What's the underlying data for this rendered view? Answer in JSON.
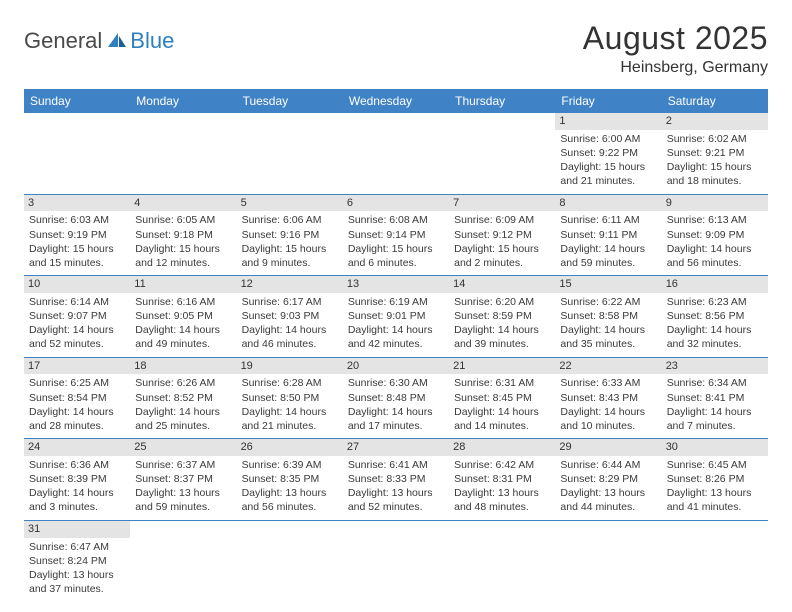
{
  "logo": {
    "part1": "General",
    "part2": "Blue"
  },
  "header": {
    "title": "August 2025",
    "location": "Heinsberg, Germany"
  },
  "colors": {
    "header_bg": "#3f83c6",
    "header_text": "#ffffff",
    "daynum_bg": "#e4e4e4",
    "rule": "#3f83c6",
    "logo_blue": "#2f7fbf"
  },
  "day_labels": [
    "Sunday",
    "Monday",
    "Tuesday",
    "Wednesday",
    "Thursday",
    "Friday",
    "Saturday"
  ],
  "weeks": [
    [
      null,
      null,
      null,
      null,
      null,
      {
        "n": "1",
        "sr": "Sunrise: 6:00 AM",
        "ss": "Sunset: 9:22 PM",
        "dl1": "Daylight: 15 hours",
        "dl2": "and 21 minutes."
      },
      {
        "n": "2",
        "sr": "Sunrise: 6:02 AM",
        "ss": "Sunset: 9:21 PM",
        "dl1": "Daylight: 15 hours",
        "dl2": "and 18 minutes."
      }
    ],
    [
      {
        "n": "3",
        "sr": "Sunrise: 6:03 AM",
        "ss": "Sunset: 9:19 PM",
        "dl1": "Daylight: 15 hours",
        "dl2": "and 15 minutes."
      },
      {
        "n": "4",
        "sr": "Sunrise: 6:05 AM",
        "ss": "Sunset: 9:18 PM",
        "dl1": "Daylight: 15 hours",
        "dl2": "and 12 minutes."
      },
      {
        "n": "5",
        "sr": "Sunrise: 6:06 AM",
        "ss": "Sunset: 9:16 PM",
        "dl1": "Daylight: 15 hours",
        "dl2": "and 9 minutes."
      },
      {
        "n": "6",
        "sr": "Sunrise: 6:08 AM",
        "ss": "Sunset: 9:14 PM",
        "dl1": "Daylight: 15 hours",
        "dl2": "and 6 minutes."
      },
      {
        "n": "7",
        "sr": "Sunrise: 6:09 AM",
        "ss": "Sunset: 9:12 PM",
        "dl1": "Daylight: 15 hours",
        "dl2": "and 2 minutes."
      },
      {
        "n": "8",
        "sr": "Sunrise: 6:11 AM",
        "ss": "Sunset: 9:11 PM",
        "dl1": "Daylight: 14 hours",
        "dl2": "and 59 minutes."
      },
      {
        "n": "9",
        "sr": "Sunrise: 6:13 AM",
        "ss": "Sunset: 9:09 PM",
        "dl1": "Daylight: 14 hours",
        "dl2": "and 56 minutes."
      }
    ],
    [
      {
        "n": "10",
        "sr": "Sunrise: 6:14 AM",
        "ss": "Sunset: 9:07 PM",
        "dl1": "Daylight: 14 hours",
        "dl2": "and 52 minutes."
      },
      {
        "n": "11",
        "sr": "Sunrise: 6:16 AM",
        "ss": "Sunset: 9:05 PM",
        "dl1": "Daylight: 14 hours",
        "dl2": "and 49 minutes."
      },
      {
        "n": "12",
        "sr": "Sunrise: 6:17 AM",
        "ss": "Sunset: 9:03 PM",
        "dl1": "Daylight: 14 hours",
        "dl2": "and 46 minutes."
      },
      {
        "n": "13",
        "sr": "Sunrise: 6:19 AM",
        "ss": "Sunset: 9:01 PM",
        "dl1": "Daylight: 14 hours",
        "dl2": "and 42 minutes."
      },
      {
        "n": "14",
        "sr": "Sunrise: 6:20 AM",
        "ss": "Sunset: 8:59 PM",
        "dl1": "Daylight: 14 hours",
        "dl2": "and 39 minutes."
      },
      {
        "n": "15",
        "sr": "Sunrise: 6:22 AM",
        "ss": "Sunset: 8:58 PM",
        "dl1": "Daylight: 14 hours",
        "dl2": "and 35 minutes."
      },
      {
        "n": "16",
        "sr": "Sunrise: 6:23 AM",
        "ss": "Sunset: 8:56 PM",
        "dl1": "Daylight: 14 hours",
        "dl2": "and 32 minutes."
      }
    ],
    [
      {
        "n": "17",
        "sr": "Sunrise: 6:25 AM",
        "ss": "Sunset: 8:54 PM",
        "dl1": "Daylight: 14 hours",
        "dl2": "and 28 minutes."
      },
      {
        "n": "18",
        "sr": "Sunrise: 6:26 AM",
        "ss": "Sunset: 8:52 PM",
        "dl1": "Daylight: 14 hours",
        "dl2": "and 25 minutes."
      },
      {
        "n": "19",
        "sr": "Sunrise: 6:28 AM",
        "ss": "Sunset: 8:50 PM",
        "dl1": "Daylight: 14 hours",
        "dl2": "and 21 minutes."
      },
      {
        "n": "20",
        "sr": "Sunrise: 6:30 AM",
        "ss": "Sunset: 8:48 PM",
        "dl1": "Daylight: 14 hours",
        "dl2": "and 17 minutes."
      },
      {
        "n": "21",
        "sr": "Sunrise: 6:31 AM",
        "ss": "Sunset: 8:45 PM",
        "dl1": "Daylight: 14 hours",
        "dl2": "and 14 minutes."
      },
      {
        "n": "22",
        "sr": "Sunrise: 6:33 AM",
        "ss": "Sunset: 8:43 PM",
        "dl1": "Daylight: 14 hours",
        "dl2": "and 10 minutes."
      },
      {
        "n": "23",
        "sr": "Sunrise: 6:34 AM",
        "ss": "Sunset: 8:41 PM",
        "dl1": "Daylight: 14 hours",
        "dl2": "and 7 minutes."
      }
    ],
    [
      {
        "n": "24",
        "sr": "Sunrise: 6:36 AM",
        "ss": "Sunset: 8:39 PM",
        "dl1": "Daylight: 14 hours",
        "dl2": "and 3 minutes."
      },
      {
        "n": "25",
        "sr": "Sunrise: 6:37 AM",
        "ss": "Sunset: 8:37 PM",
        "dl1": "Daylight: 13 hours",
        "dl2": "and 59 minutes."
      },
      {
        "n": "26",
        "sr": "Sunrise: 6:39 AM",
        "ss": "Sunset: 8:35 PM",
        "dl1": "Daylight: 13 hours",
        "dl2": "and 56 minutes."
      },
      {
        "n": "27",
        "sr": "Sunrise: 6:41 AM",
        "ss": "Sunset: 8:33 PM",
        "dl1": "Daylight: 13 hours",
        "dl2": "and 52 minutes."
      },
      {
        "n": "28",
        "sr": "Sunrise: 6:42 AM",
        "ss": "Sunset: 8:31 PM",
        "dl1": "Daylight: 13 hours",
        "dl2": "and 48 minutes."
      },
      {
        "n": "29",
        "sr": "Sunrise: 6:44 AM",
        "ss": "Sunset: 8:29 PM",
        "dl1": "Daylight: 13 hours",
        "dl2": "and 44 minutes."
      },
      {
        "n": "30",
        "sr": "Sunrise: 6:45 AM",
        "ss": "Sunset: 8:26 PM",
        "dl1": "Daylight: 13 hours",
        "dl2": "and 41 minutes."
      }
    ],
    [
      {
        "n": "31",
        "sr": "Sunrise: 6:47 AM",
        "ss": "Sunset: 8:24 PM",
        "dl1": "Daylight: 13 hours",
        "dl2": "and 37 minutes."
      },
      null,
      null,
      null,
      null,
      null,
      null
    ]
  ]
}
